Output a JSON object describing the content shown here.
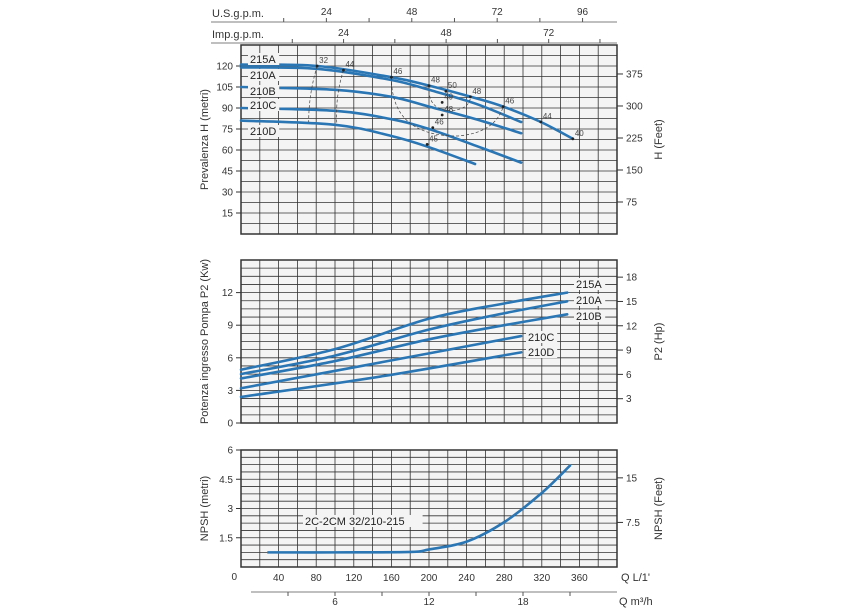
{
  "chart_data": [
    {
      "type": "line",
      "title": "",
      "xlabel": "Q L/1'",
      "ylabel": "Prevalenza H (metri)",
      "ylabel_right": "H (Feet)",
      "xlim": [
        0,
        400
      ],
      "ylim": [
        0,
        135
      ],
      "grid": true,
      "yticks": [
        15,
        30,
        45,
        60,
        75,
        90,
        105,
        120
      ],
      "yticks_right": [
        75,
        150,
        225,
        300,
        375
      ],
      "top_axes": [
        {
          "label": "U.S.g.p.m.",
          "factor": 3.785,
          "ticks": [
            24,
            48,
            72,
            96
          ],
          "minor_step": 12
        },
        {
          "label": "Imp.g.p.m.",
          "factor": 4.546,
          "ticks": [
            24,
            48,
            72
          ],
          "minor_step": 12
        }
      ],
      "series": [
        {
          "name": "215A",
          "points": [
            [
              0,
              121
            ],
            [
              81,
              120
            ],
            [
              160,
              112
            ],
            [
              200,
              106
            ],
            [
              250,
              97
            ],
            [
              279,
              91
            ],
            [
              319,
              80
            ],
            [
              353,
              68
            ]
          ]
        },
        {
          "name": "210A",
          "points": [
            [
              0,
              119
            ],
            [
              81,
              118
            ],
            [
              160,
              110
            ],
            [
              200,
              103
            ],
            [
              250,
              93
            ],
            [
              298,
              80
            ]
          ]
        },
        {
          "name": "210B",
          "points": [
            [
              0,
              105
            ],
            [
              100,
              103
            ],
            [
              160,
              98
            ],
            [
              200,
              91
            ],
            [
              250,
              82
            ],
            [
              298,
              72
            ]
          ]
        },
        {
          "name": "210C",
          "points": [
            [
              0,
              90
            ],
            [
              100,
              88
            ],
            [
              160,
              82
            ],
            [
              200,
              75
            ],
            [
              250,
              63
            ],
            [
              298,
              51
            ]
          ]
        },
        {
          "name": "210D",
          "points": [
            [
              0,
              81
            ],
            [
              100,
              78
            ],
            [
              160,
              70
            ],
            [
              200,
              62
            ],
            [
              249,
              50
            ]
          ]
        }
      ],
      "annotations": [
        {
          "text": "32",
          "q": 81,
          "h": 120
        },
        {
          "text": "44",
          "q": 109,
          "h": 117
        },
        {
          "text": "46",
          "q": 160,
          "h": 112
        },
        {
          "text": "48",
          "q": 200,
          "h": 106
        },
        {
          "text": "50",
          "q": 218,
          "h": 102
        },
        {
          "text": "48",
          "q": 244,
          "h": 98
        },
        {
          "text": "46",
          "q": 279,
          "h": 91
        },
        {
          "text": "44",
          "q": 319,
          "h": 80
        },
        {
          "text": "40",
          "q": 353,
          "h": 68
        },
        {
          "text": "49",
          "q": 214,
          "h": 94
        },
        {
          "text": "48",
          "q": 214,
          "h": 85
        },
        {
          "text": "46",
          "q": 204,
          "h": 76
        },
        {
          "text": "45",
          "q": 198,
          "h": 64
        }
      ]
    },
    {
      "type": "line",
      "title": "",
      "xlabel": "Q L/1'",
      "ylabel": "Potenza ingresso Pompa P2 (Kw)",
      "ylabel_right": "P2 (Hp)",
      "xlim": [
        0,
        400
      ],
      "ylim": [
        0,
        15
      ],
      "grid": true,
      "yticks": [
        0,
        3,
        6,
        9,
        12
      ],
      "yticks_right": [
        3,
        6,
        9,
        12,
        15,
        18
      ],
      "series": [
        {
          "name": "215A",
          "points": [
            [
              0,
              4.9
            ],
            [
              100,
              6.8
            ],
            [
              200,
              9.6
            ],
            [
              280,
              11.0
            ],
            [
              347,
              12.0
            ]
          ]
        },
        {
          "name": "210A",
          "points": [
            [
              0,
              4.5
            ],
            [
              100,
              6.2
            ],
            [
              200,
              8.6
            ],
            [
              280,
              10.1
            ],
            [
              347,
              11.2
            ]
          ]
        },
        {
          "name": "210B",
          "points": [
            [
              0,
              4.1
            ],
            [
              100,
              5.7
            ],
            [
              200,
              7.7
            ],
            [
              280,
              9.0
            ],
            [
              347,
              10.0
            ]
          ]
        },
        {
          "name": "210C",
          "points": [
            [
              0,
              3.2
            ],
            [
              150,
              5.6
            ],
            [
              298,
              8.0
            ]
          ]
        },
        {
          "name": "210D",
          "points": [
            [
              0,
              2.4
            ],
            [
              150,
              4.3
            ],
            [
              298,
              6.5
            ]
          ]
        }
      ]
    },
    {
      "type": "line",
      "title": "",
      "xlabel": "Q L/1'",
      "xlabel2": "Q m³/h",
      "ylabel": "NPSH (metri)",
      "ylabel_right": "NPSH (Feet)",
      "xlim": [
        0,
        400
      ],
      "ylim": [
        0,
        6
      ],
      "grid": true,
      "xticks": [
        40,
        80,
        120,
        160,
        200,
        240,
        280,
        320,
        360
      ],
      "origin_label": "0",
      "xticks2": [
        6,
        12,
        18
      ],
      "yticks": [
        1.5,
        3,
        4.5,
        6
      ],
      "yticks_right": [
        7.5,
        15
      ],
      "series": [
        {
          "name": "2C-2CM 32/210-215",
          "points": [
            [
              29,
              0.75
            ],
            [
              100,
              0.75
            ],
            [
              180,
              0.77
            ],
            [
              200,
              0.9
            ],
            [
              240,
              1.3
            ],
            [
              280,
              2.3
            ],
            [
              320,
              3.8
            ],
            [
              350,
              5.2
            ]
          ]
        }
      ]
    }
  ],
  "colors": {
    "curve": "#2a76b4",
    "grid": "#333333",
    "plot_bg": "#f4f4f4"
  }
}
